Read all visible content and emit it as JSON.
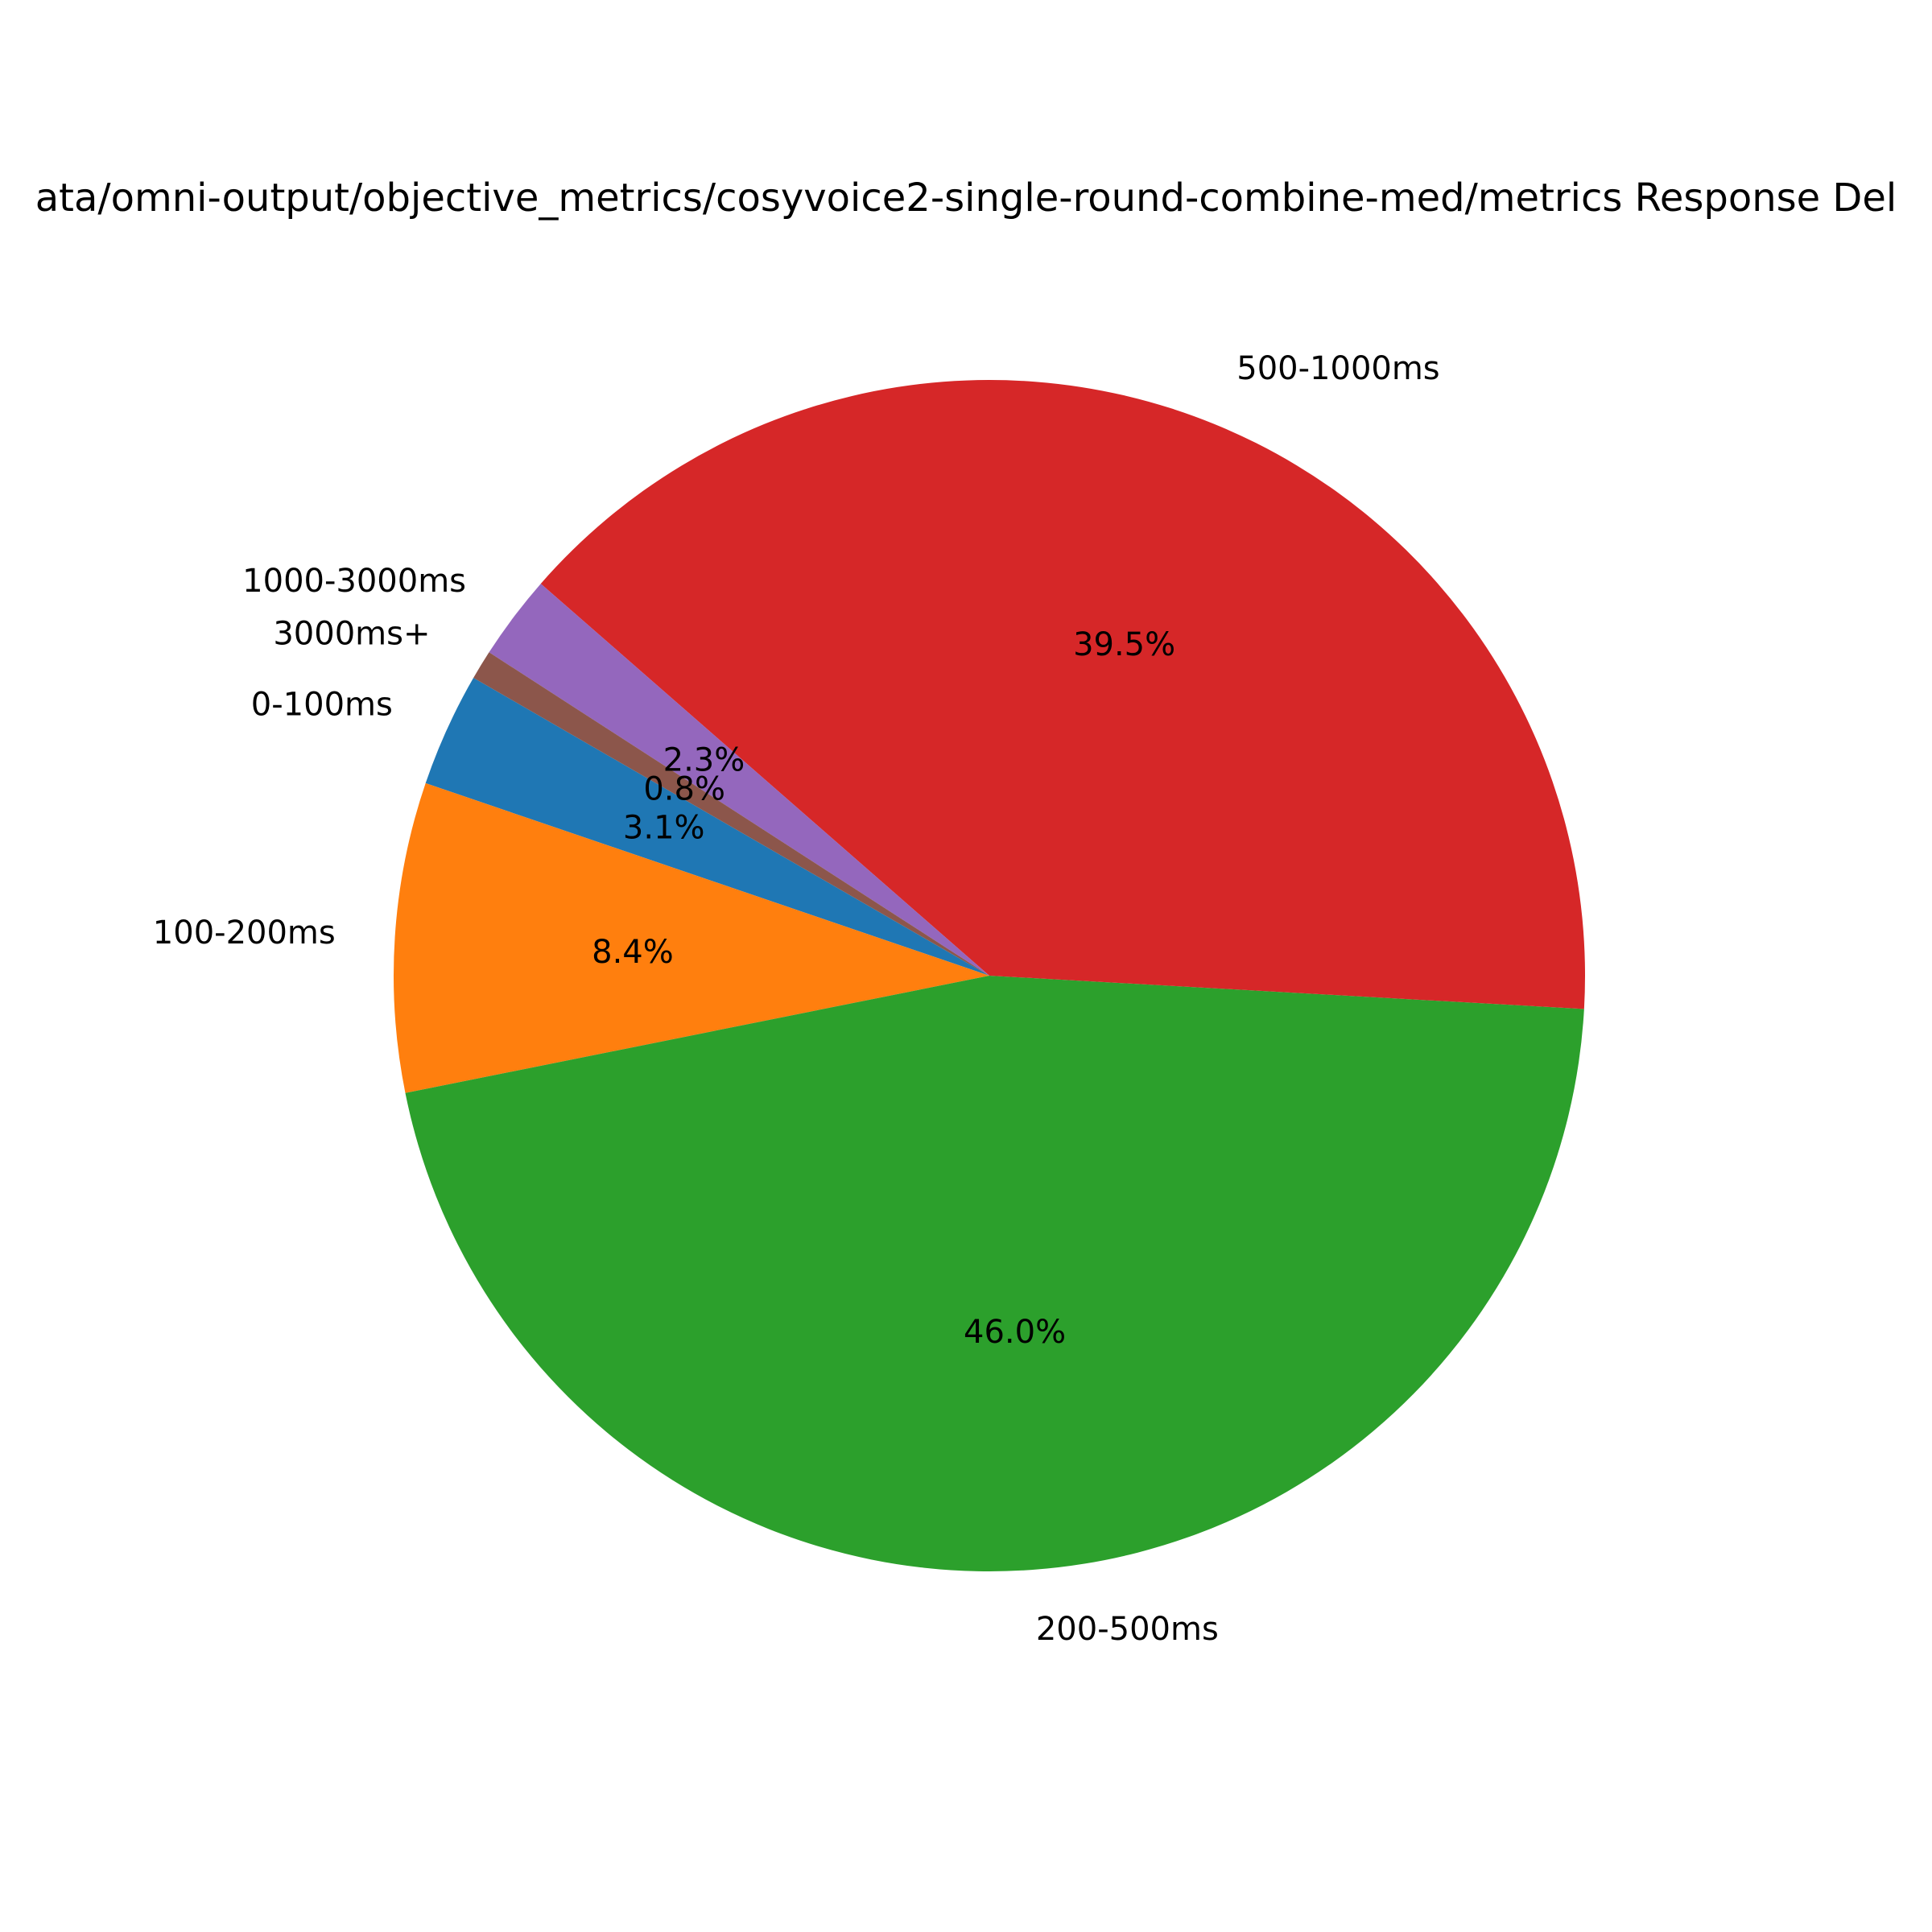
{
  "chart_data": {
    "type": "pie",
    "title": "ata/omni-output/objective_metrics/cosyvoice2-single-round-combine-med/metrics Response Del",
    "slices": [
      {
        "label": "0-100ms",
        "value": 3.1,
        "pct_label": "3.1%",
        "color": "#1f77b4"
      },
      {
        "label": "100-200ms",
        "value": 8.4,
        "pct_label": "8.4%",
        "color": "#ff7f0e"
      },
      {
        "label": "200-500ms",
        "value": 46.0,
        "pct_label": "46.0%",
        "color": "#2ca02c"
      },
      {
        "label": "500-1000ms",
        "value": 39.5,
        "pct_label": "39.5%",
        "color": "#d62728"
      },
      {
        "label": "1000-3000ms",
        "value": 2.3,
        "pct_label": "2.3%",
        "color": "#9467bd"
      },
      {
        "label": "3000ms+",
        "value": 0.8,
        "pct_label": "0.8%",
        "color": "#8c564b"
      }
    ],
    "start_angle": 150,
    "direction": "counterclockwise",
    "legend": "none"
  }
}
